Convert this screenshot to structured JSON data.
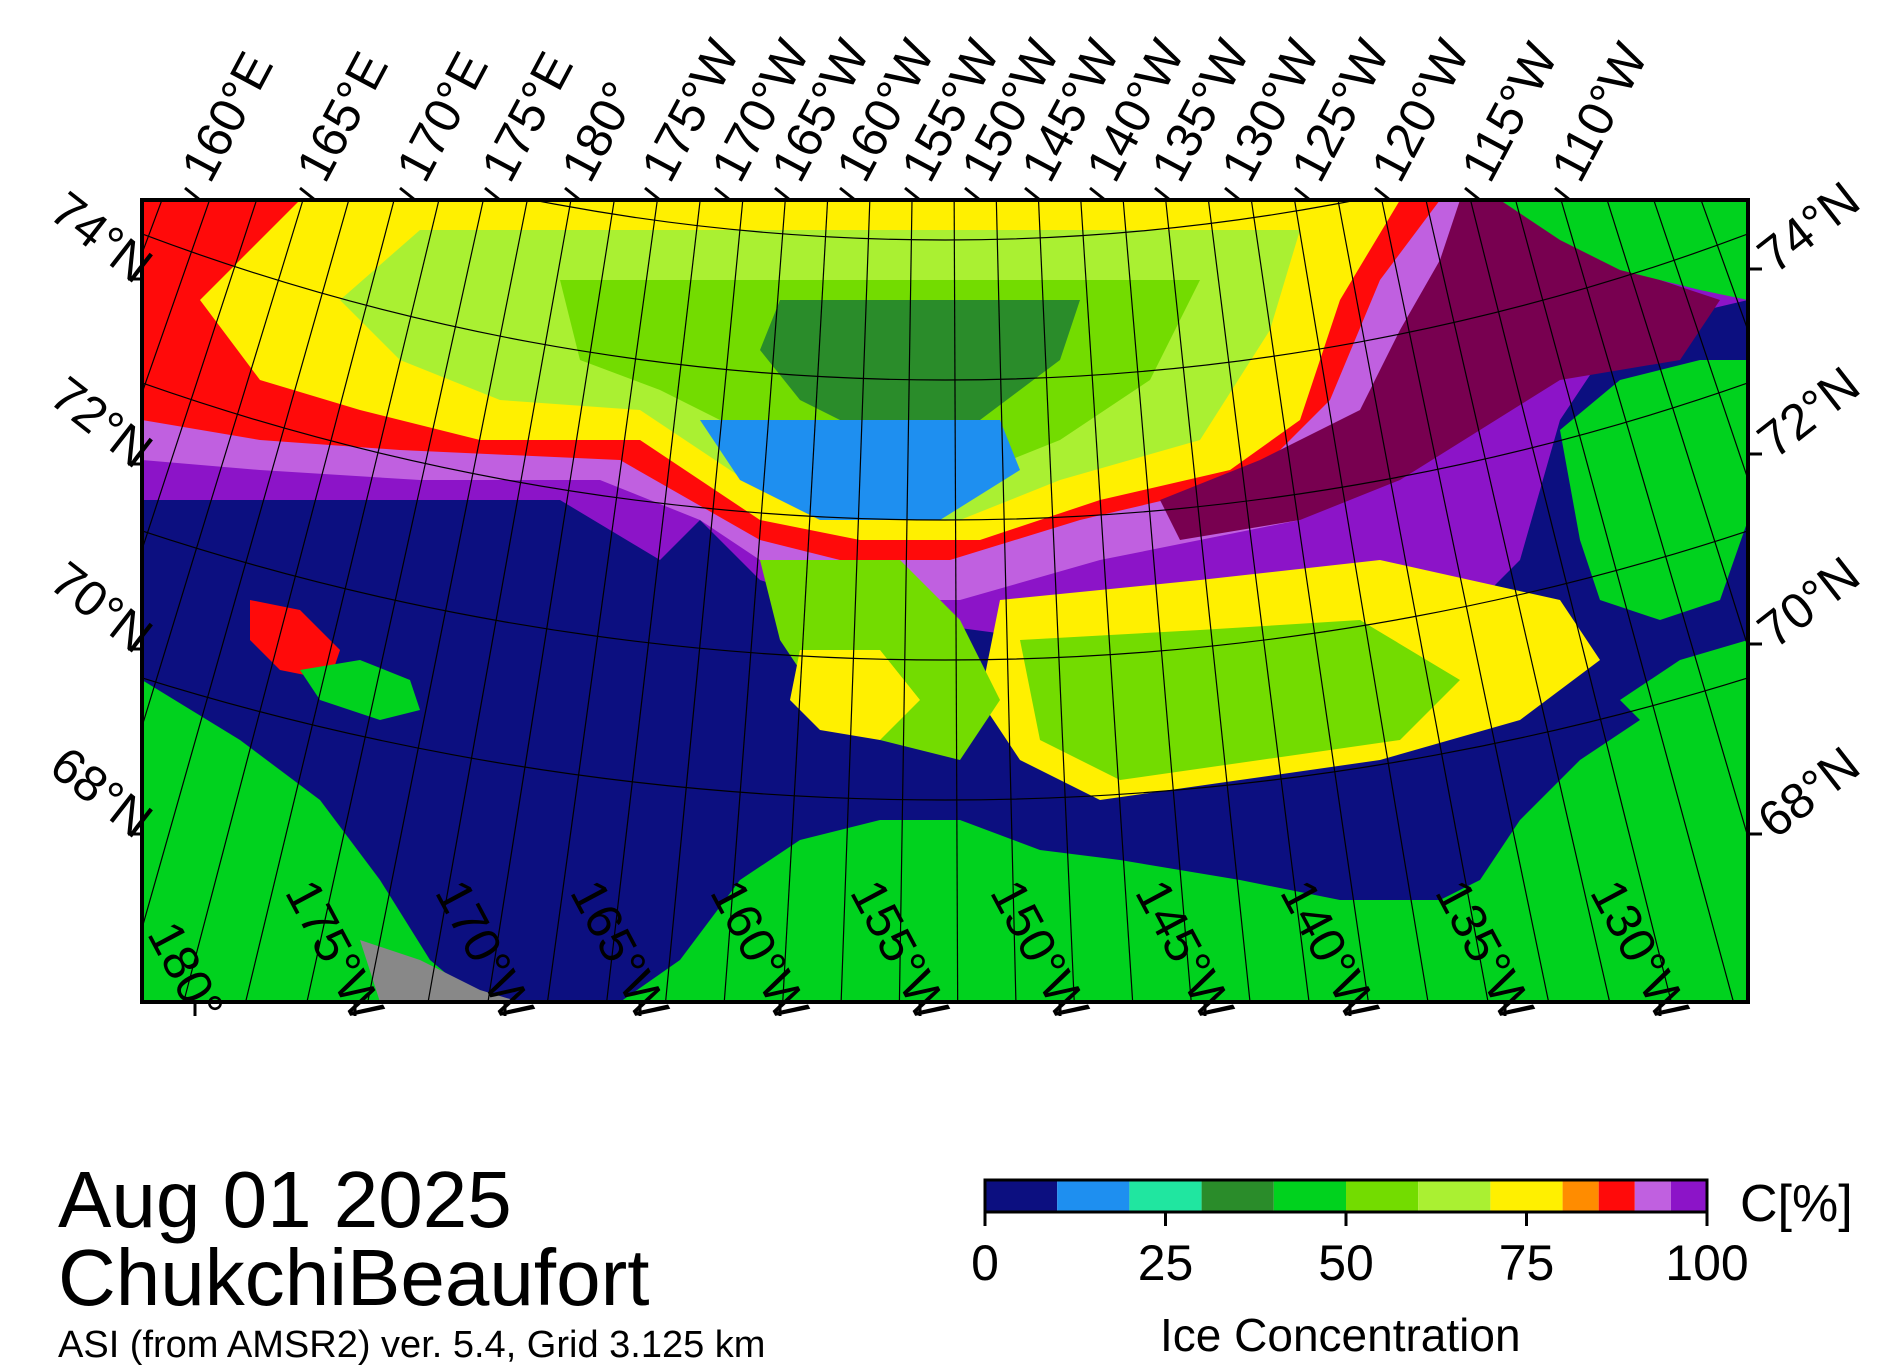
{
  "map": {
    "region": "ChukchiBeaufort",
    "date": "Aug 01 2025",
    "source": "ASI (from AMSR2) ver. 5.4,  Grid 3.125 km"
  },
  "top_lon_labels": [
    "160°E",
    "165°E",
    "170°E",
    "175°E",
    "180°",
    "175°W",
    "170°W",
    "165°W",
    "160°W",
    "155°W",
    "150°W",
    "145°W",
    "140°W",
    "135°W",
    "130°W",
    "125°W",
    "120°W",
    "115°W",
    "110°W"
  ],
  "bottom_lon_labels": [
    "180°",
    "175°W",
    "170°W",
    "165°W",
    "160°W",
    "155°W",
    "150°W",
    "145°W",
    "140°W",
    "135°W",
    "130°W"
  ],
  "left_lat_labels": [
    "74°N",
    "72°N",
    "70°N",
    "68°N"
  ],
  "right_lat_labels": [
    "74°N",
    "72°N",
    "70°N",
    "68°N"
  ],
  "colorbar": {
    "title": "Ice Concentration",
    "unit": "C[%]",
    "ticks": [
      "0",
      "25",
      "50",
      "75",
      "100"
    ],
    "min": 0,
    "max": 100,
    "bins": [
      {
        "from": 0,
        "to": 10,
        "color": "#0c0f80"
      },
      {
        "from": 10,
        "to": 20,
        "color": "#1e8ff0"
      },
      {
        "from": 20,
        "to": 30,
        "color": "#20e6a0"
      },
      {
        "from": 30,
        "to": 40,
        "color": "#2a8c2a"
      },
      {
        "from": 40,
        "to": 50,
        "color": "#00d21e"
      },
      {
        "from": 50,
        "to": 60,
        "color": "#73dc00"
      },
      {
        "from": 60,
        "to": 70,
        "color": "#aaf032"
      },
      {
        "from": 70,
        "to": 80,
        "color": "#fff000"
      },
      {
        "from": 80,
        "to": 85,
        "color": "#ff8c00"
      },
      {
        "from": 85,
        "to": 90,
        "color": "#ff0a0a"
      },
      {
        "from": 90,
        "to": 95,
        "color": "#c060e0"
      },
      {
        "from": 95,
        "to": 100,
        "color": "#8c14c8"
      }
    ]
  },
  "colors": {
    "water": "#0c0f80",
    "land": "#00d21e",
    "nodata": "#888888",
    "fastice": "#780050"
  }
}
